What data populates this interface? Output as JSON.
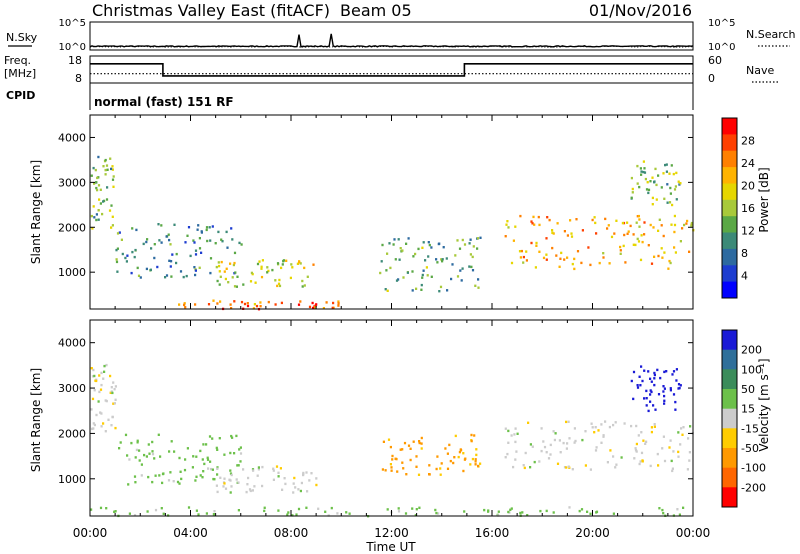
{
  "header": {
    "title": "Christmas Valley East (fitACF)",
    "beam": "Beam 05",
    "date": "01/Nov/2016"
  },
  "noise_panel": {
    "left_label": "N.Sky",
    "left_ticks": [
      "10^5",
      "10^0"
    ],
    "right_ticks": [
      "10^5",
      "10^0"
    ],
    "right_label": "N.Search"
  },
  "freq_panel": {
    "left_label_line1": "Freq.",
    "left_label_line2": "[MHz]",
    "left_ticks": [
      "18",
      "8"
    ],
    "right_ticks": [
      "60",
      "0"
    ],
    "right_label": "Nave"
  },
  "cpid_panel": {
    "label": "CPID",
    "text": "normal (fast) 151 RF"
  },
  "power_panel": {
    "ylabel": "Slant Range [km]",
    "cbar_label": "Power [dB]",
    "cbar_ticks": [
      "28",
      "24",
      "20",
      "16",
      "12",
      "8",
      "4"
    ],
    "cbar_colors": [
      "#ff0000",
      "#ff4000",
      "#ff8000",
      "#ffb300",
      "#e6d600",
      "#a8c93a",
      "#5aa845",
      "#3c8a78",
      "#2d6aa0",
      "#1d3dd0",
      "#0000ff"
    ]
  },
  "velocity_panel": {
    "ylabel": "Slant Range [km]",
    "cbar_label": "Velocity [m s⁻¹]",
    "cbar_ticks": [
      "200",
      "100",
      "50",
      "15",
      "-15",
      "-50",
      "-100",
      "-200"
    ],
    "cbar_colors": [
      "#1a1ad6",
      "#2f6f9a",
      "#3b8c5a",
      "#6cc04a",
      "#cccccc",
      "#ffcc00",
      "#ff9900",
      "#ff6600",
      "#ff0000"
    ]
  },
  "time_axis": {
    "label": "Time UT",
    "ticks": [
      "00:00",
      "04:00",
      "08:00",
      "12:00",
      "16:00",
      "20:00",
      "00:00"
    ]
  },
  "chart_data": [
    {
      "type": "line",
      "title": "N.Sky / N.Search",
      "y_scale": "log",
      "ylim": [
        1,
        100000
      ],
      "x_unit": "hours UT",
      "series": [
        {
          "name": "N.Sky",
          "x": [
            0,
            2,
            4,
            6,
            8,
            10,
            12,
            14,
            16,
            18,
            20,
            22,
            24
          ],
          "values": [
            3,
            3,
            4,
            3,
            3,
            3,
            3,
            3,
            3,
            3,
            3,
            3,
            3
          ]
        }
      ]
    },
    {
      "type": "line",
      "title": "Freq. / Nave",
      "x_unit": "hours UT",
      "series": [
        {
          "name": "Freq.",
          "x": [
            0,
            2.9,
            2.9,
            14.9,
            14.9,
            24
          ],
          "values": [
            15.5,
            15.5,
            10.2,
            10.2,
            15.5,
            15.5
          ]
        },
        {
          "name": "Nave",
          "x": [
            0,
            24
          ],
          "values": [
            20,
            20
          ]
        }
      ]
    },
    {
      "type": "heatmap",
      "title": "Power [dB]",
      "xlabel": "Time UT",
      "ylabel": "Slant Range [km]",
      "xlim": [
        0,
        24
      ],
      "ylim": [
        180,
        4500
      ],
      "clim": [
        0,
        32
      ],
      "features": [
        {
          "x": [
            0.0,
            1.0
          ],
          "y": [
            2000,
            3600
          ],
          "value": 14
        },
        {
          "x": [
            1.0,
            6.0
          ],
          "y": [
            900,
            2100
          ],
          "value": 10
        },
        {
          "x": [
            5.0,
            9.0
          ],
          "y": [
            700,
            1300
          ],
          "value": 18
        },
        {
          "x": [
            3.5,
            10.0
          ],
          "y": [
            200,
            400
          ],
          "value": 26
        },
        {
          "x": [
            11.5,
            15.5
          ],
          "y": [
            600,
            1800
          ],
          "value": 12
        },
        {
          "x": [
            16.5,
            24.0
          ],
          "y": [
            1100,
            2300
          ],
          "value": 22
        },
        {
          "x": [
            21.5,
            23.5
          ],
          "y": [
            2500,
            3500
          ],
          "value": 14
        }
      ]
    },
    {
      "type": "heatmap",
      "title": "Velocity [m s⁻¹]",
      "xlabel": "Time UT",
      "ylabel": "Slant Range [km]",
      "xlim": [
        0,
        24
      ],
      "ylim": [
        180,
        4500
      ],
      "clim": [
        -200,
        200
      ],
      "features": [
        {
          "x": [
            0.0,
            1.0
          ],
          "y": [
            2000,
            3600
          ],
          "value": 0
        },
        {
          "x": [
            1.0,
            6.0
          ],
          "y": [
            900,
            2000
          ],
          "value": 30
        },
        {
          "x": [
            5.0,
            9.0
          ],
          "y": [
            700,
            1300
          ],
          "value": 0
        },
        {
          "x": [
            0.0,
            24.0
          ],
          "y": [
            200,
            400
          ],
          "value": 30
        },
        {
          "x": [
            11.5,
            15.5
          ],
          "y": [
            1100,
            2000
          ],
          "value": -60
        },
        {
          "x": [
            16.5,
            24.0
          ],
          "y": [
            1200,
            2300
          ],
          "value": 0
        },
        {
          "x": [
            21.5,
            23.5
          ],
          "y": [
            2500,
            3500
          ],
          "value": 220
        }
      ]
    }
  ]
}
